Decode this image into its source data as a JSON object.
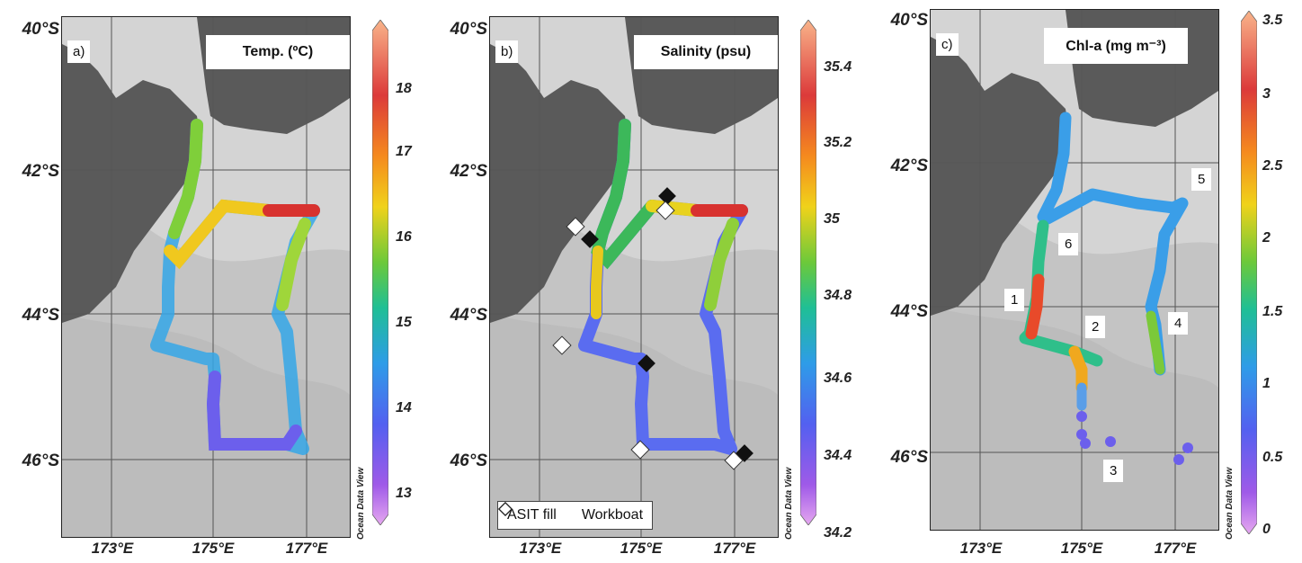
{
  "axes": {
    "lat_labels": [
      "40°S",
      "42°S",
      "44°S",
      "46°S"
    ],
    "lon_labels": [
      "173°E",
      "175°E",
      "177°E"
    ]
  },
  "watermark": "Ocean Data View",
  "panels": [
    {
      "id": "a",
      "panel_label": "a)",
      "variable_title": "Temp. (ºC)",
      "colorbar_ticks": [
        "18",
        "17",
        "16",
        "15",
        "14",
        "13"
      ],
      "colors": [
        "#f9b48a",
        "#dc3a3a",
        "#f58a1e",
        "#f0d21a",
        "#6cc93a",
        "#1fbf95",
        "#2e9ce8",
        "#5360f0",
        "#9f5ae8",
        "#e6a8f0"
      ]
    },
    {
      "id": "b",
      "panel_label": "b)",
      "variable_title": "Salinity (psu)",
      "colorbar_ticks": [
        "35.4",
        "35.2",
        "35",
        "34.8",
        "34.6",
        "34.4",
        "34.2"
      ],
      "colors": [
        "#f9b48a",
        "#dc3a3a",
        "#f58a1e",
        "#f0d21a",
        "#6cc93a",
        "#1fbf95",
        "#2e9ce8",
        "#5360f0",
        "#9f5ae8",
        "#e6a8f0"
      ],
      "legend": {
        "asit_label": "ASIT fill",
        "workboat_label": "Workboat"
      }
    },
    {
      "id": "c",
      "panel_label": "c)",
      "variable_title": "Chl-a (mg m⁻³)",
      "colorbar_ticks": [
        "3.5",
        "3",
        "2.5",
        "2",
        "1.5",
        "1",
        "0.5",
        "0"
      ],
      "colors": [
        "#f9b48a",
        "#dc3a3a",
        "#f58a1e",
        "#f0d21a",
        "#6cc93a",
        "#1fbf95",
        "#2e9ce8",
        "#5360f0",
        "#9f5ae8",
        "#e6a8f0"
      ],
      "station_labels": [
        "1",
        "2",
        "3",
        "4",
        "5",
        "6"
      ]
    }
  ]
}
